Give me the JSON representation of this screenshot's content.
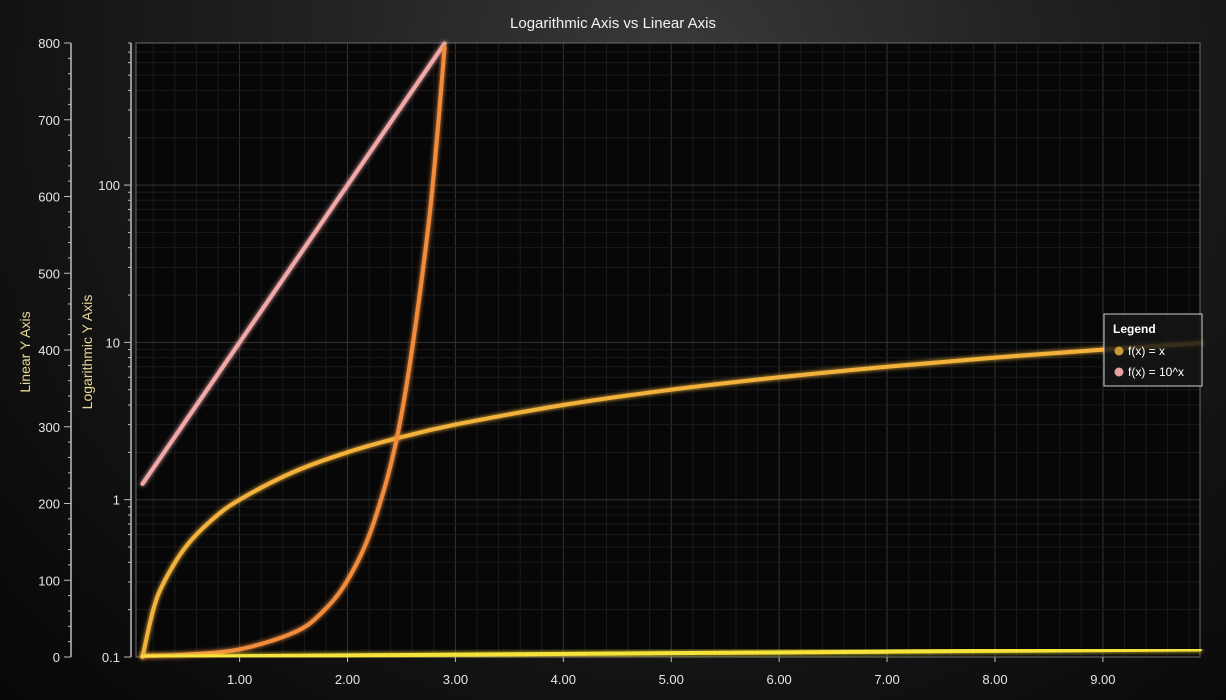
{
  "chart_data": {
    "type": "line",
    "title": "Logarithmic Axis vs Linear Axis",
    "x": {
      "range": [
        0.04,
        9.9
      ],
      "ticks": [
        1,
        2,
        3,
        4,
        5,
        6,
        7,
        8,
        9
      ],
      "tick_labels": [
        "1.00",
        "2.00",
        "3.00",
        "4.00",
        "5.00",
        "6.00",
        "7.00",
        "8.00",
        "9.00"
      ]
    },
    "linear_y_axis": {
      "label": "Linear Y Axis",
      "range": [
        0,
        800
      ],
      "ticks": [
        0,
        100,
        200,
        300,
        400,
        500,
        600,
        700,
        800
      ],
      "tick_labels": [
        "0",
        "100",
        "200",
        "300",
        "400",
        "500",
        "600",
        "700",
        "800"
      ]
    },
    "log_y_axis": {
      "label": "Logarithmic Y Axis",
      "scale": "log",
      "range": [
        0.1,
        800
      ],
      "ticks": [
        0.1,
        1,
        10,
        100
      ],
      "tick_labels": [
        "0.1",
        "1",
        "10",
        "100"
      ]
    },
    "series": [
      {
        "name": "f(x) = x",
        "y_axis": "log",
        "color": "#f2b23a",
        "x": [
          0.1,
          0.2,
          0.3,
          0.5,
          0.75,
          1,
          1.5,
          2,
          2.5,
          3,
          4,
          5,
          6,
          7,
          8,
          9,
          9.9
        ],
        "y": [
          0.1,
          0.2,
          0.3,
          0.5,
          0.75,
          1,
          1.5,
          2,
          2.5,
          3,
          4,
          5,
          6,
          7,
          8,
          9,
          9.9
        ]
      },
      {
        "name": "f(x) = 10^x",
        "y_axis": "log",
        "color": "#f0a8a8",
        "x": [
          0.1,
          1,
          2,
          2.9
        ],
        "y": [
          1.26,
          10,
          100,
          794
        ]
      },
      {
        "name": "",
        "y_axis": "linear",
        "color": "#f28c3e",
        "x": [
          0.1,
          0.5,
          1,
          1.5,
          1.75,
          2,
          2.25,
          2.5,
          2.75,
          2.9
        ],
        "y": [
          1.26,
          3.16,
          10,
          31.6,
          56.2,
          100,
          178,
          316,
          562,
          794
        ]
      },
      {
        "name": "",
        "y_axis": "linear",
        "color": "#f5e23a",
        "x": [
          0.1,
          9.9
        ],
        "y": [
          0.1,
          9.9
        ]
      }
    ],
    "legend": {
      "title": "Legend",
      "position": "right",
      "entries": [
        {
          "label": "f(x) = x",
          "color": "#c99a3a"
        },
        {
          "label": "f(x) = 10^x",
          "color": "#e8a0a0"
        }
      ]
    },
    "grid": true
  }
}
